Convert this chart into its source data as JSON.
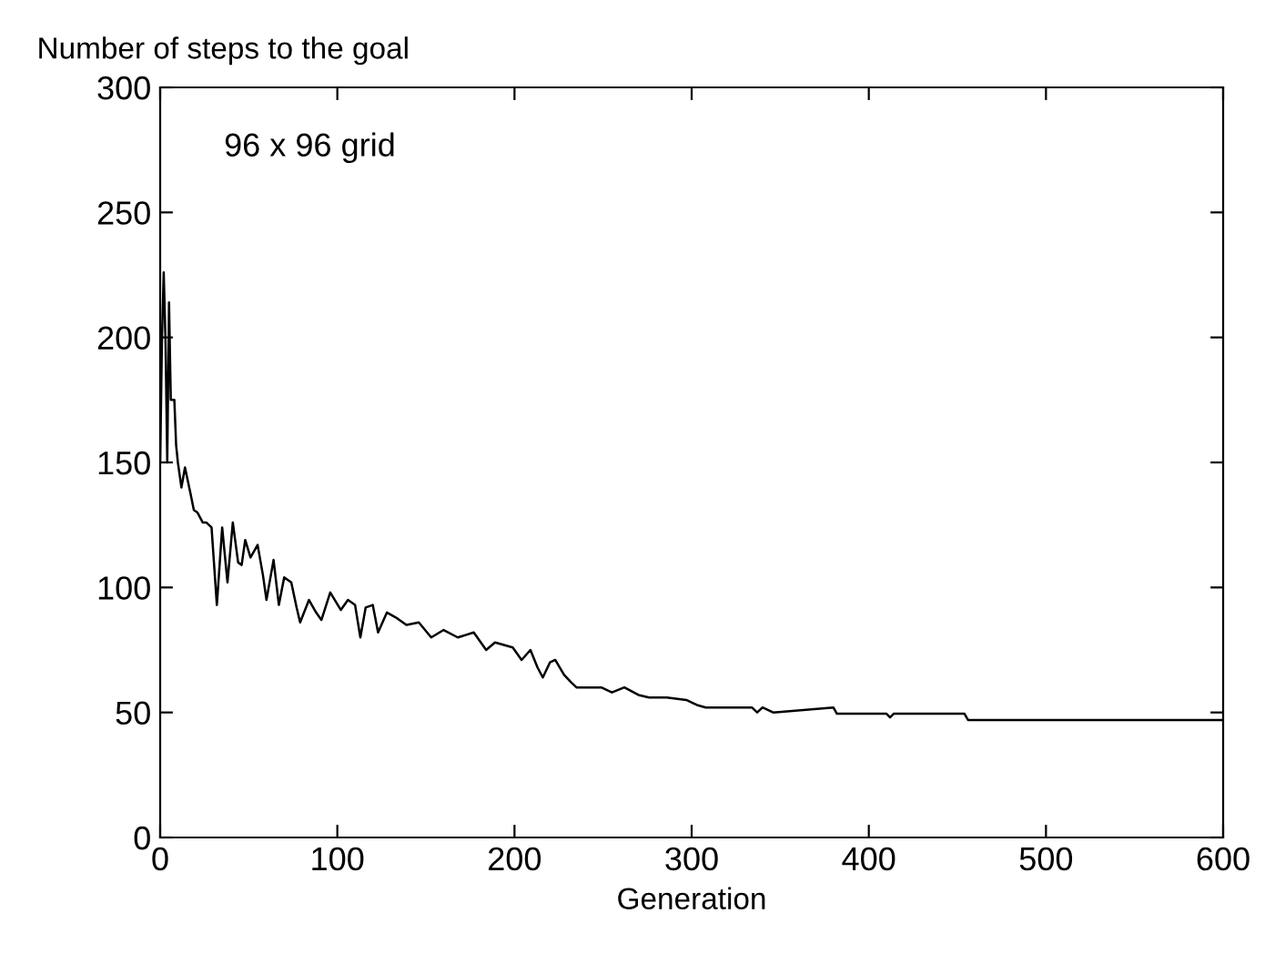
{
  "chart_data": {
    "type": "line",
    "xlabel": "Generation",
    "ylabel": "Number of steps to the goal",
    "annotations": [
      "96 x 96 grid"
    ],
    "series": [
      {
        "color": "#000000",
        "x": [
          0,
          1,
          2,
          3,
          4,
          5,
          6,
          8,
          9,
          10,
          12,
          14,
          17,
          19,
          21,
          24,
          26,
          29,
          32,
          35,
          38,
          41,
          44,
          46,
          48,
          51,
          55,
          58,
          60,
          64,
          67,
          70,
          74,
          77,
          79,
          84,
          88,
          91,
          96,
          102,
          106,
          110,
          113,
          116,
          120,
          123,
          128,
          133,
          139,
          146,
          153,
          160,
          168,
          177,
          184,
          189,
          194,
          199,
          204,
          209,
          213,
          216,
          220,
          223,
          228,
          232,
          235,
          241,
          249,
          255,
          262,
          270,
          276,
          286,
          297,
          303,
          308,
          334,
          337,
          340,
          346,
          380,
          382,
          410,
          412,
          414,
          454,
          456,
          600
        ],
        "values": [
          150,
          199,
          226,
          199,
          150,
          214,
          175,
          175,
          157,
          150,
          140,
          148,
          138,
          131,
          130,
          126,
          126,
          124,
          93,
          124,
          102,
          126,
          110,
          109,
          119,
          112,
          117,
          105,
          95,
          111,
          93,
          104,
          102,
          92,
          86,
          95,
          90,
          87,
          98,
          91,
          95,
          93,
          80,
          92,
          93,
          82,
          90,
          88,
          85,
          86,
          80,
          83,
          80,
          82,
          75,
          78,
          77,
          76,
          71,
          75,
          68,
          64,
          70,
          71,
          65,
          62,
          60,
          60,
          60,
          58,
          60,
          57,
          56,
          56,
          55,
          53,
          52,
          52,
          50,
          52,
          50,
          52,
          49.5,
          49.5,
          48,
          49.5,
          49.5,
          47,
          47
        ]
      }
    ],
    "xlim": [
      0,
      600
    ],
    "xticks": [
      0,
      100,
      200,
      300,
      400,
      500,
      600
    ],
    "ylim": [
      0,
      300
    ],
    "yticks": [
      0,
      50,
      100,
      150,
      200,
      250,
      300
    ]
  }
}
